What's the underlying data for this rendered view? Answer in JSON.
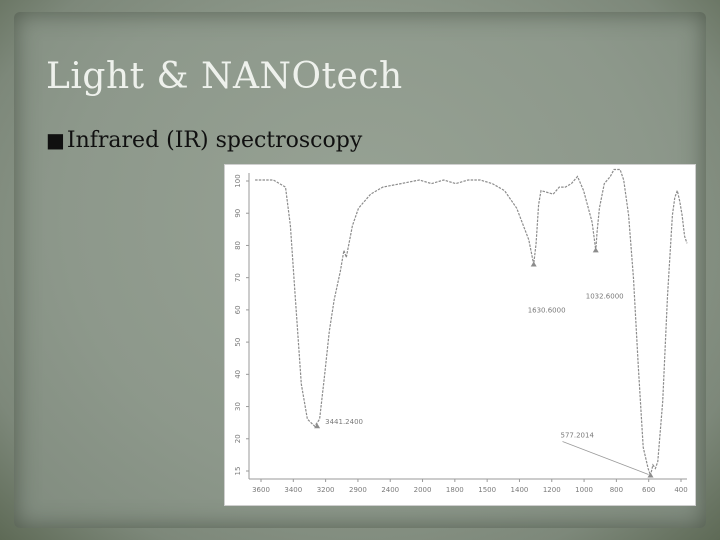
{
  "slide": {
    "title": "Light & NANOtech",
    "bullet_glyph": "■",
    "bullet_text": "Infrared (IR) spectroscopy"
  },
  "chart_data": {
    "type": "line",
    "title": "",
    "xlabel": "",
    "ylabel": "",
    "x_reversed": true,
    "xlim": [
      4000,
      400
    ],
    "ylim": [
      13,
      100
    ],
    "x_ticks": [
      "3600",
      "3400",
      "3200",
      "2900",
      "2400",
      "2000",
      "1800",
      "1500",
      "1400",
      "1200",
      "1000",
      "800",
      "600",
      "400"
    ],
    "y_ticks": [
      "100",
      "90",
      "80",
      "70",
      "60",
      "50",
      "40",
      "30",
      "20",
      "15"
    ],
    "grid": false,
    "line_color": "#8c8c8c",
    "series": [
      {
        "points": [
          [
            3950,
            98
          ],
          [
            3800,
            98
          ],
          [
            3700,
            96
          ],
          [
            3660,
            85
          ],
          [
            3620,
            65
          ],
          [
            3570,
            40
          ],
          [
            3520,
            30
          ],
          [
            3460,
            28
          ],
          [
            3420,
            30
          ],
          [
            3380,
            42
          ],
          [
            3340,
            55
          ],
          [
            3300,
            64
          ],
          [
            3250,
            72
          ],
          [
            3220,
            78
          ],
          [
            3200,
            76
          ],
          [
            3150,
            85
          ],
          [
            3100,
            90
          ],
          [
            3000,
            94
          ],
          [
            2900,
            96
          ],
          [
            2750,
            97
          ],
          [
            2600,
            98
          ],
          [
            2500,
            97
          ],
          [
            2400,
            98
          ],
          [
            2300,
            97
          ],
          [
            2200,
            98
          ],
          [
            2100,
            98
          ],
          [
            2000,
            97
          ],
          [
            1900,
            95
          ],
          [
            1800,
            90
          ],
          [
            1700,
            81
          ],
          [
            1660,
            74
          ],
          [
            1640,
            80
          ],
          [
            1620,
            91
          ],
          [
            1600,
            95
          ],
          [
            1500,
            94
          ],
          [
            1450,
            96
          ],
          [
            1400,
            96
          ],
          [
            1350,
            97
          ],
          [
            1300,
            99
          ],
          [
            1250,
            95
          ],
          [
            1180,
            86
          ],
          [
            1150,
            78
          ],
          [
            1140,
            83
          ],
          [
            1120,
            90
          ],
          [
            1080,
            97
          ],
          [
            1030,
            99
          ],
          [
            1000,
            101
          ],
          [
            950,
            101
          ],
          [
            920,
            98
          ],
          [
            880,
            88
          ],
          [
            840,
            70
          ],
          [
            800,
            45
          ],
          [
            760,
            22
          ],
          [
            720,
            16
          ],
          [
            700,
            14
          ],
          [
            680,
            17
          ],
          [
            660,
            16
          ],
          [
            640,
            18
          ],
          [
            600,
            35
          ],
          [
            560,
            65
          ],
          [
            520,
            88
          ],
          [
            500,
            93
          ],
          [
            480,
            95
          ],
          [
            460,
            92
          ],
          [
            440,
            88
          ],
          [
            420,
            82
          ],
          [
            400,
            80
          ]
        ]
      }
    ],
    "peaks": [
      {
        "wavenumber": 3440,
        "transmittance": 28,
        "label": "3441.2400"
      },
      {
        "wavenumber": 1660,
        "transmittance": 74,
        "label": "1630.6000"
      },
      {
        "wavenumber": 1150,
        "transmittance": 78,
        "label": "1032.6000"
      },
      {
        "wavenumber": 700,
        "transmittance": 14,
        "label": "577.2014"
      }
    ]
  }
}
